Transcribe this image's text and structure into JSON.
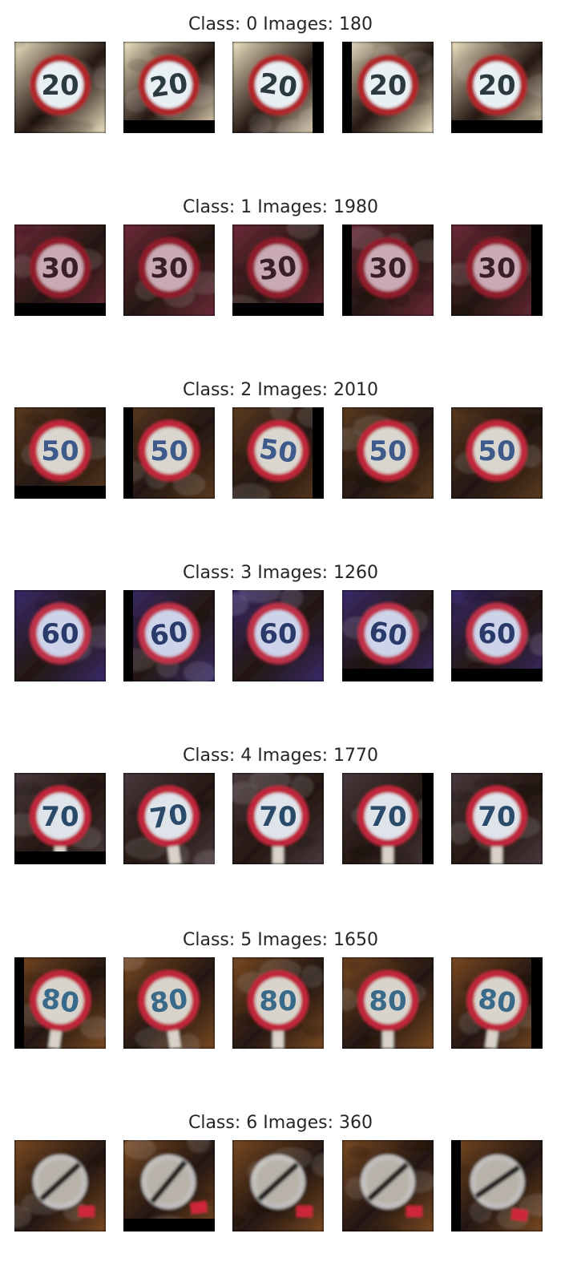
{
  "rows": [
    {
      "title": "Class: 0 Images: 180",
      "sign_number": "20",
      "palette": {
        "bg": "#f4e6c6",
        "ring": "#b0252b",
        "face": "#e8f0f4",
        "text": "#2b3a40"
      },
      "images": [
        {
          "skew": "none",
          "crop": "none"
        },
        {
          "skew": "tilt-left",
          "crop": "bottom"
        },
        {
          "skew": "tilt-right",
          "crop": "right"
        },
        {
          "skew": "none",
          "crop": "left"
        },
        {
          "skew": "none",
          "crop": "bottom"
        }
      ]
    },
    {
      "title": "Class: 1 Images: 1980",
      "sign_number": "30",
      "palette": {
        "bg": "#6e2a3a",
        "ring": "#8f1c2b",
        "face": "#c9a9b4",
        "text": "#3a1f2a"
      },
      "images": [
        {
          "skew": "none",
          "crop": "bottom"
        },
        {
          "skew": "none",
          "crop": "none"
        },
        {
          "skew": "tilt-left",
          "crop": "bottom"
        },
        {
          "skew": "none",
          "crop": "left"
        },
        {
          "skew": "none",
          "crop": "right"
        }
      ]
    },
    {
      "title": "Class: 2 Images: 2010",
      "sign_number": "50",
      "palette": {
        "bg": "#5a3a1f",
        "ring": "#c0283a",
        "face": "#d9d6cf",
        "text": "#3d5a8a"
      },
      "images": [
        {
          "skew": "none",
          "crop": "bottom"
        },
        {
          "skew": "none",
          "crop": "left"
        },
        {
          "skew": "tilt-right",
          "crop": "right"
        },
        {
          "skew": "none",
          "crop": "none"
        },
        {
          "skew": "none",
          "crop": "none"
        }
      ]
    },
    {
      "title": "Class: 3 Images: 1260",
      "sign_number": "60",
      "palette": {
        "bg": "#3a2a6e",
        "ring": "#c0304a",
        "face": "#cdd4ea",
        "text": "#2a3a6a"
      },
      "images": [
        {
          "skew": "none",
          "crop": "none"
        },
        {
          "skew": "tilt-left",
          "crop": "left"
        },
        {
          "skew": "none",
          "crop": "none"
        },
        {
          "skew": "tilt-right",
          "crop": "bottom"
        },
        {
          "skew": "none",
          "crop": "bottom"
        }
      ]
    },
    {
      "title": "Class: 4 Images: 1770",
      "sign_number": "70",
      "palette": {
        "bg": "#4a3a3e",
        "ring": "#c0283a",
        "face": "#dfe3ea",
        "text": "#2a4a6a"
      },
      "images": [
        {
          "skew": "none",
          "crop": "bottom"
        },
        {
          "skew": "tilt-left",
          "crop": "none"
        },
        {
          "skew": "none",
          "crop": "none"
        },
        {
          "skew": "none",
          "crop": "right"
        },
        {
          "skew": "none",
          "crop": "none"
        }
      ]
    },
    {
      "title": "Class: 5 Images: 1650",
      "sign_number": "80",
      "palette": {
        "bg": "#7a4a22",
        "ring": "#c0283a",
        "face": "#d8d4cc",
        "text": "#3a6a8a"
      },
      "images": [
        {
          "skew": "tilt-right",
          "crop": "left"
        },
        {
          "skew": "tilt-left",
          "crop": "none"
        },
        {
          "skew": "none",
          "crop": "none"
        },
        {
          "skew": "none",
          "crop": "none"
        },
        {
          "skew": "tilt-right",
          "crop": "right"
        }
      ]
    },
    {
      "title": "Class: 6 Images: 360",
      "sign_number": "",
      "palette": {
        "bg": "#7a4a22",
        "ring": "#d8d8d8",
        "face": "#3a2a22",
        "text": "#1a1a1a"
      },
      "images": [
        {
          "skew": "none",
          "crop": "none"
        },
        {
          "skew": "tilt-left",
          "crop": "bottom"
        },
        {
          "skew": "none",
          "crop": "none"
        },
        {
          "skew": "none",
          "crop": "none"
        },
        {
          "skew": "tilt-right",
          "crop": "left"
        }
      ]
    }
  ]
}
